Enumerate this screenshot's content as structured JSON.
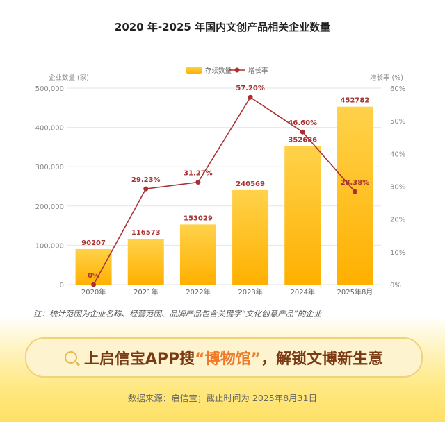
{
  "chart_data": {
    "type": "bar+line",
    "title": "2020 年-2025 年国内文创产品相关企业数量",
    "categories": [
      "2020年",
      "2021年",
      "2022年",
      "2023年",
      "2024年",
      "2025年8月"
    ],
    "series": [
      {
        "name": "存续数量",
        "type": "bar",
        "axis": "left",
        "values": [
          90207,
          116573,
          153029,
          240569,
          352686,
          452782
        ],
        "labels": [
          "90207",
          "116573",
          "153029",
          "240569",
          "352686",
          "452782"
        ]
      },
      {
        "name": "增长率",
        "type": "line",
        "axis": "right",
        "values": [
          0,
          29.23,
          31.27,
          57.2,
          46.6,
          28.38
        ],
        "labels": [
          "0%",
          "29.23%",
          "31.27%",
          "57.20%",
          "46.60%",
          "28.38%"
        ]
      }
    ],
    "ylabel_left": "企业数量 (家)",
    "ylabel_right": "增长率 (%)",
    "ylim_left": [
      0,
      500000
    ],
    "ylim_right": [
      0,
      60
    ],
    "yticks_left": [
      "0",
      "100,000",
      "200,000",
      "300,000",
      "400,000",
      "500,000"
    ],
    "yticks_right": [
      "0%",
      "10%",
      "20%",
      "30%",
      "40%",
      "50%",
      "60%"
    ],
    "grid": true,
    "legend": "top-center",
    "colors": {
      "bar_top": "#ffd24a",
      "bar_bottom": "#ffb000",
      "line": "#a83232"
    }
  },
  "note": "注：统计范围为企业名称、经营范围、品牌产品包含关键字“文化创意产品”的企业",
  "banner": {
    "part1": "上启信宝APP搜",
    "highlight": "“博物馆”",
    "part2": "，解锁文博新生意",
    "icon": "search-icon"
  },
  "source": "数据来源：启信宝；截止时间为 2025年8月31日"
}
